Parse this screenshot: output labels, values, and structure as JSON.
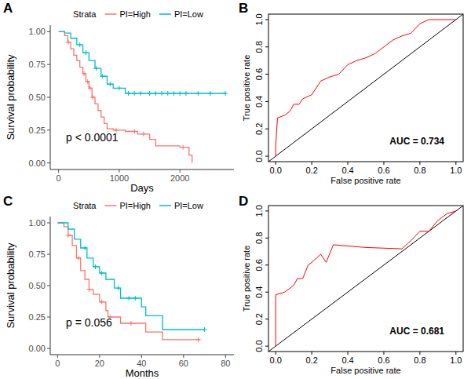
{
  "chart_data": [
    {
      "type": "step",
      "panel_label": "A",
      "legend_title": "Strata",
      "legend": "top",
      "x_label": "Days",
      "y_label": "Survival probability",
      "annotation": "p < 0.0001",
      "xlim": [
        -138,
        2890
      ],
      "xticks": [
        0,
        1000,
        2000
      ],
      "ylim": [
        -0.05,
        1.05
      ],
      "yticks": [
        {
          "value": 0,
          "label": "0.00"
        },
        {
          "value": 0.25,
          "label": "0.25"
        },
        {
          "value": 0.5,
          "label": "0.50"
        },
        {
          "value": 0.75,
          "label": "0.75"
        },
        {
          "value": 1,
          "label": "1.00"
        }
      ],
      "grid": false,
      "series": [
        {
          "name": "PI=High",
          "color": "#F8766D",
          "x": [
            0,
            100,
            150,
            200,
            250,
            300,
            350,
            400,
            450,
            500,
            550,
            600,
            650,
            700,
            750,
            800,
            900,
            1100,
            1300,
            1500,
            1600,
            2000,
            2150,
            2200
          ],
          "values": [
            1.0,
            0.97,
            0.92,
            0.87,
            0.82,
            0.78,
            0.73,
            0.68,
            0.62,
            0.57,
            0.5,
            0.45,
            0.4,
            0.35,
            0.3,
            0.26,
            0.25,
            0.24,
            0.22,
            0.18,
            0.13,
            0.12,
            0.06,
            0.0
          ],
          "censored": [
            160,
            420,
            480,
            520,
            560,
            950,
            1250,
            1400,
            2050
          ]
        },
        {
          "name": "PI=Low",
          "color": "#00BFC4",
          "x": [
            0,
            100,
            200,
            300,
            400,
            500,
            600,
            700,
            800,
            900,
            1100,
            2750
          ],
          "values": [
            1.0,
            0.99,
            0.95,
            0.9,
            0.84,
            0.78,
            0.72,
            0.66,
            0.6,
            0.57,
            0.53,
            0.53
          ],
          "censored": [
            350,
            450,
            620,
            720,
            850,
            1000,
            1150,
            1250,
            1350,
            1500,
            1600,
            1700,
            1800,
            1900,
            2000,
            2100,
            2300,
            2500,
            2750
          ]
        }
      ]
    },
    {
      "type": "line",
      "panel_label": "B",
      "x_label": "False positive rate",
      "y_label": "True positive rate",
      "annotation": "AUC =  0.734",
      "xlim": [
        -0.04,
        1.04
      ],
      "ylim": [
        -0.04,
        1.04
      ],
      "xticks": [
        {
          "value": 0,
          "label": "0.0"
        },
        {
          "value": 0.2,
          "label": "0.2"
        },
        {
          "value": 0.4,
          "label": "0.4"
        },
        {
          "value": 0.6,
          "label": "0.6"
        },
        {
          "value": 0.8,
          "label": "0.8"
        },
        {
          "value": 1,
          "label": "1.0"
        }
      ],
      "yticks": [
        {
          "value": 0,
          "label": "0.0"
        },
        {
          "value": 0.2,
          "label": "0.2"
        },
        {
          "value": 0.4,
          "label": "0.4"
        },
        {
          "value": 0.6,
          "label": "0.6"
        },
        {
          "value": 0.8,
          "label": "0.8"
        },
        {
          "value": 1,
          "label": "1.0"
        }
      ],
      "grid": false,
      "series": [
        {
          "color": "#FF0000",
          "x": [
            0,
            0,
            0.01,
            0.05,
            0.08,
            0.1,
            0.13,
            0.15,
            0.2,
            0.25,
            0.3,
            0.35,
            0.4,
            0.45,
            0.5,
            0.55,
            0.6,
            0.65,
            0.7,
            0.75,
            0.8,
            0.85,
            1.0
          ],
          "values": [
            0,
            0.07,
            0.28,
            0.3,
            0.33,
            0.38,
            0.38,
            0.42,
            0.45,
            0.55,
            0.58,
            0.6,
            0.67,
            0.7,
            0.72,
            0.75,
            0.8,
            0.85,
            0.88,
            0.9,
            0.97,
            1.0,
            1.0
          ]
        }
      ]
    },
    {
      "type": "step",
      "panel_label": "C",
      "legend_title": "Strata",
      "legend": "top",
      "x_label": "Months",
      "y_label": "Survival probability",
      "annotation": "p = 0.056",
      "xlim": [
        -3.5,
        84
      ],
      "xticks": [
        0,
        20,
        40,
        60,
        80
      ],
      "ylim": [
        -0.05,
        1.05
      ],
      "yticks": [
        {
          "value": 0,
          "label": "0.00"
        },
        {
          "value": 0.25,
          "label": "0.25"
        },
        {
          "value": 0.5,
          "label": "0.50"
        },
        {
          "value": 0.75,
          "label": "0.75"
        },
        {
          "value": 1,
          "label": "1.00"
        }
      ],
      "grid": false,
      "series": [
        {
          "name": "PI=High",
          "color": "#F8766D",
          "x": [
            0,
            3,
            5,
            7,
            9,
            11,
            13,
            15,
            17,
            20,
            23,
            24,
            30,
            42,
            50,
            68
          ],
          "values": [
            1.0,
            0.97,
            0.9,
            0.82,
            0.72,
            0.62,
            0.55,
            0.47,
            0.43,
            0.37,
            0.3,
            0.25,
            0.2,
            0.13,
            0.07,
            0.07
          ],
          "censored": [
            5,
            10,
            15,
            21,
            25,
            35,
            67
          ]
        },
        {
          "name": "PI=Low",
          "color": "#00BFC4",
          "x": [
            0,
            5,
            8,
            11,
            14,
            17,
            20,
            23,
            27,
            30,
            40,
            42,
            50,
            70
          ],
          "values": [
            1.0,
            0.95,
            0.87,
            0.8,
            0.72,
            0.65,
            0.6,
            0.55,
            0.48,
            0.4,
            0.33,
            0.26,
            0.15,
            0.15
          ],
          "censored": [
            13,
            18,
            21,
            29,
            34,
            37,
            70
          ]
        }
      ]
    },
    {
      "type": "line",
      "panel_label": "D",
      "x_label": "False positive rate",
      "y_label": "True positive rate",
      "annotation": "AUC =  0.681",
      "xlim": [
        -0.04,
        1.04
      ],
      "ylim": [
        -0.04,
        1.04
      ],
      "xticks": [
        {
          "value": 0,
          "label": "0.0"
        },
        {
          "value": 0.2,
          "label": "0.2"
        },
        {
          "value": 0.4,
          "label": "0.4"
        },
        {
          "value": 0.6,
          "label": "0.6"
        },
        {
          "value": 0.8,
          "label": "0.8"
        },
        {
          "value": 1,
          "label": "1.0"
        }
      ],
      "yticks": [
        {
          "value": 0,
          "label": "0.0"
        },
        {
          "value": 0.2,
          "label": "0.2"
        },
        {
          "value": 0.4,
          "label": "0.4"
        },
        {
          "value": 0.6,
          "label": "0.6"
        },
        {
          "value": 0.8,
          "label": "0.8"
        },
        {
          "value": 1,
          "label": "1.0"
        }
      ],
      "grid": false,
      "series": [
        {
          "color": "#FF0000",
          "x": [
            0,
            0,
            0.05,
            0.1,
            0.12,
            0.15,
            0.18,
            0.2,
            0.25,
            0.28,
            0.32,
            0.5,
            0.7,
            0.75,
            0.8,
            0.85,
            0.9,
            0.92,
            0.95,
            1.0
          ],
          "values": [
            0,
            0.38,
            0.4,
            0.45,
            0.5,
            0.5,
            0.6,
            0.62,
            0.68,
            0.62,
            0.75,
            0.73,
            0.72,
            0.78,
            0.85,
            0.85,
            0.93,
            0.95,
            0.98,
            1.0
          ]
        }
      ]
    }
  ]
}
